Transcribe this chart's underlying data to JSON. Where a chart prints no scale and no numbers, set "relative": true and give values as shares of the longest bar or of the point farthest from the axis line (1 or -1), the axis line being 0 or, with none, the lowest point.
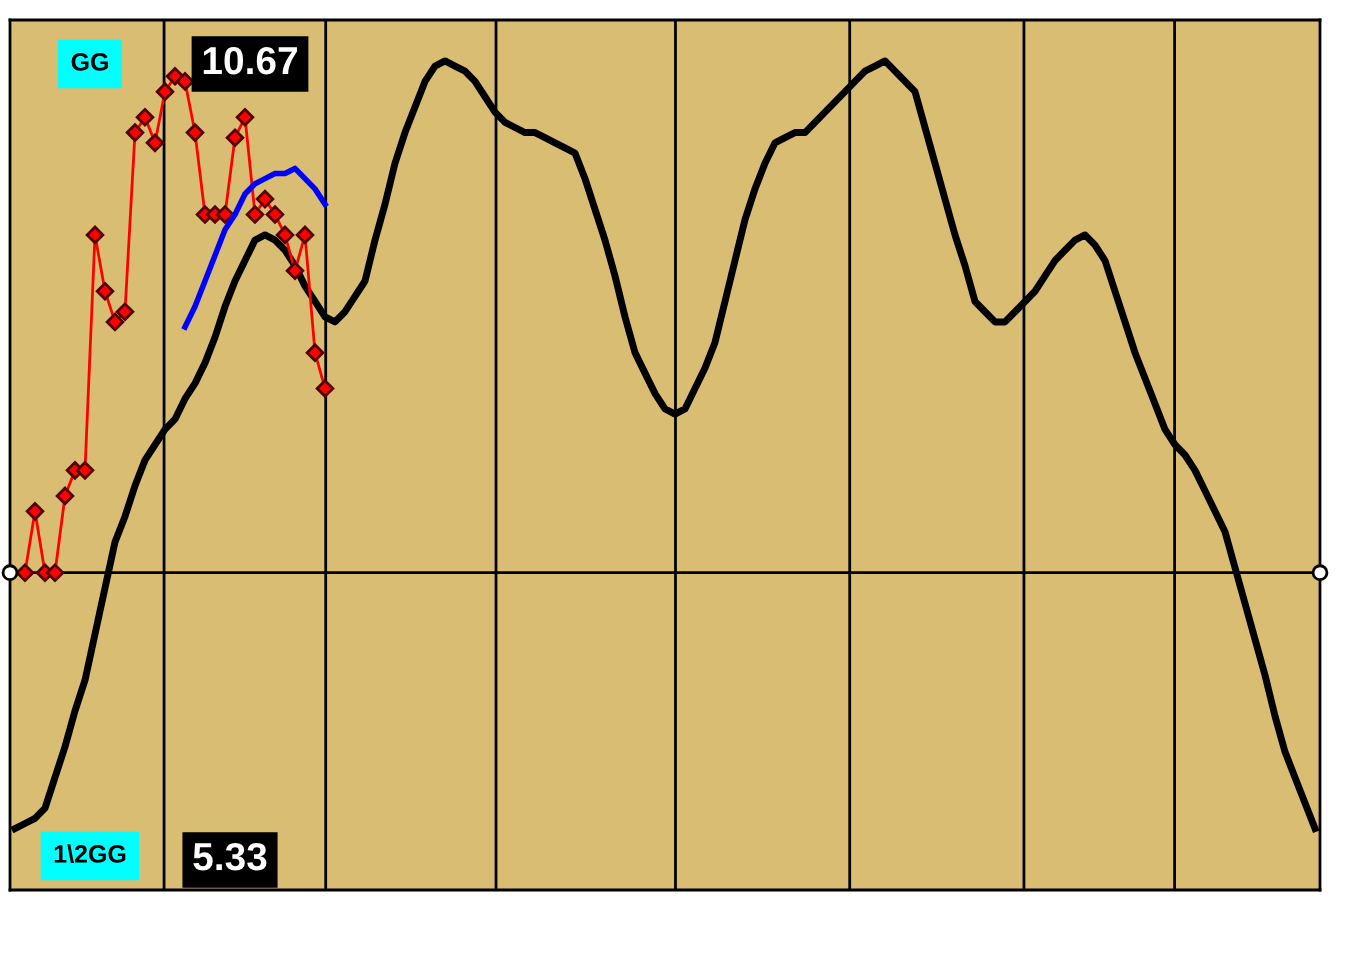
{
  "chart_data": {
    "type": "line",
    "relative": true,
    "categories": [
      null,
      null,
      null,
      null,
      null,
      null,
      null,
      null,
      null,
      null,
      null,
      null,
      null,
      null,
      null,
      null,
      null,
      null,
      null,
      null,
      null,
      null,
      null,
      null,
      null,
      null,
      null,
      null,
      null,
      null,
      null,
      null,
      null,
      null,
      null,
      null,
      null,
      null,
      null,
      null,
      null,
      null,
      null,
      null,
      null,
      null,
      null,
      null,
      null,
      null,
      null,
      null,
      null,
      null,
      null,
      null,
      null,
      null,
      null,
      null,
      null,
      null,
      null,
      null,
      null,
      null,
      null,
      null,
      null,
      null,
      null,
      null,
      null,
      null,
      null,
      null,
      null,
      null,
      null,
      null,
      null,
      null,
      null,
      null,
      null,
      null,
      null,
      null,
      null,
      null,
      null,
      null,
      null,
      null,
      null,
      null,
      null,
      null,
      null,
      null,
      null,
      null,
      null,
      null,
      null,
      null,
      null,
      null,
      null,
      null,
      null,
      null,
      null,
      null,
      null,
      null,
      null,
      null,
      null,
      null,
      null,
      null,
      null,
      null,
      null,
      null,
      null,
      null,
      null,
      null,
      null
    ],
    "annotations": [
      "GG",
      "10.67",
      "1\\2GG",
      "5.33"
    ],
    "series": [
      {
        "color": "#000000",
        "values": [
          -0.5,
          -0.49,
          -0.48,
          -0.46,
          -0.4,
          -0.34,
          -0.27,
          -0.21,
          -0.12,
          -0.03,
          0.06,
          0.11,
          0.17,
          0.22,
          0.25,
          0.28,
          0.3,
          0.34,
          0.37,
          0.41,
          0.46,
          0.52,
          0.57,
          0.61,
          0.65,
          0.66,
          0.65,
          0.63,
          0.6,
          0.56,
          0.53,
          0.5,
          0.49,
          0.51,
          0.54,
          0.57,
          0.65,
          0.72,
          0.8,
          0.86,
          0.91,
          0.96,
          0.99,
          1.0,
          0.99,
          0.98,
          0.96,
          0.93,
          0.9,
          0.88,
          0.87,
          0.86,
          0.86,
          0.85,
          0.84,
          0.83,
          0.82,
          0.77,
          0.71,
          0.65,
          0.58,
          0.5,
          0.43,
          0.39,
          0.35,
          0.32,
          0.31,
          0.32,
          0.36,
          0.4,
          0.45,
          0.53,
          0.61,
          0.69,
          0.75,
          0.8,
          0.84,
          0.85,
          0.86,
          0.86,
          0.88,
          0.9,
          0.92,
          0.94,
          0.96,
          0.98,
          0.99,
          1.0,
          0.98,
          0.96,
          0.94,
          0.87,
          0.8,
          0.73,
          0.66,
          0.6,
          0.53,
          0.51,
          0.49,
          0.49,
          0.51,
          0.53,
          0.55,
          0.58,
          0.61,
          0.63,
          0.65,
          0.66,
          0.64,
          0.61,
          0.55,
          0.49,
          0.43,
          0.38,
          0.33,
          0.28,
          0.25,
          0.23,
          0.2,
          0.16,
          0.12,
          0.08,
          0.01,
          -0.06,
          -0.13,
          -0.2,
          -0.28,
          -0.35,
          -0.4,
          -0.45,
          -0.5
        ]
      },
      {
        "color": "#ff0000",
        "marker": "diamond",
        "values": [
          null,
          0,
          0.12,
          0,
          0,
          0.15,
          0.2,
          0.2,
          0.66,
          0.55,
          0.49,
          0.51,
          0.86,
          0.89,
          0.84,
          0.94,
          0.97,
          0.96,
          0.86,
          0.7,
          0.7,
          0.7,
          0.85,
          0.89,
          0.7,
          0.73,
          0.7,
          0.66,
          0.59,
          0.66,
          0.43,
          0.36,
          null,
          null,
          null,
          null,
          null,
          null,
          null,
          null,
          null,
          null,
          null,
          null,
          null,
          null,
          null,
          null,
          null,
          null,
          null,
          null,
          null,
          null,
          null,
          null,
          null,
          null,
          null,
          null,
          null,
          null,
          null,
          null,
          null,
          null,
          null,
          null,
          null,
          null,
          null,
          null,
          null,
          null,
          null,
          null,
          null,
          null,
          null,
          null,
          null,
          null,
          null,
          null,
          null,
          null,
          null,
          null,
          null,
          null,
          null,
          null,
          null,
          null,
          null,
          null,
          null,
          null,
          null,
          null,
          null,
          null,
          null,
          null,
          null,
          null,
          null,
          null,
          null,
          null,
          null,
          null,
          null,
          null,
          null,
          null,
          null,
          null,
          null,
          null,
          null,
          null,
          null,
          null,
          null,
          null,
          null,
          null,
          null,
          null,
          null
        ]
      },
      {
        "color": "#0000ff",
        "values": [
          null,
          null,
          null,
          null,
          null,
          null,
          null,
          null,
          null,
          null,
          null,
          null,
          null,
          null,
          null,
          null,
          null,
          0.48,
          0.52,
          0.57,
          0.62,
          0.67,
          0.7,
          0.74,
          0.76,
          0.77,
          0.78,
          0.78,
          0.79,
          0.77,
          0.75,
          0.72,
          null,
          null,
          null,
          null,
          null,
          null,
          null,
          null,
          null,
          null,
          null,
          null,
          null,
          null,
          null,
          null,
          null,
          null,
          null,
          null,
          null,
          null,
          null,
          null,
          null,
          null,
          null,
          null,
          null,
          null,
          null,
          null,
          null,
          null,
          null,
          null,
          null,
          null,
          null,
          null,
          null,
          null,
          null,
          null,
          null,
          null,
          null,
          null,
          null,
          null,
          null,
          null,
          null,
          null,
          null,
          null,
          null,
          null,
          null,
          null,
          null,
          null,
          null,
          null,
          null,
          null,
          null,
          null,
          null,
          null,
          null,
          null,
          null,
          null,
          null,
          null,
          null,
          null,
          null,
          null,
          null,
          null,
          null,
          null,
          null,
          null,
          null,
          null,
          null,
          null,
          null,
          null,
          null,
          null,
          null,
          null,
          null,
          null,
          null
        ]
      }
    ]
  }
}
